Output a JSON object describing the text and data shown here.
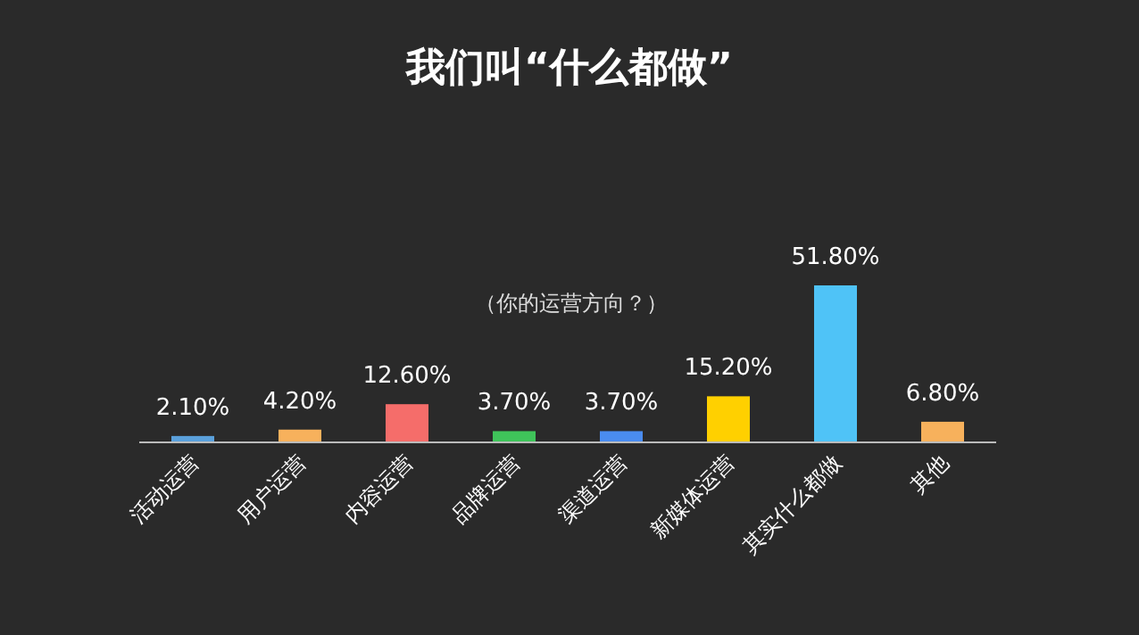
{
  "chart_data": {
    "type": "bar",
    "title": "我们叫“什么都做”",
    "annotations": [
      "（你的运营方向？）"
    ],
    "categories": [
      "活动运营",
      "用户运营",
      "内容运营",
      "品牌运营",
      "渠道运营",
      "新媒体运营",
      "其实什么都做",
      "其他"
    ],
    "values": [
      2.1,
      4.2,
      12.6,
      3.7,
      3.7,
      15.2,
      51.8,
      6.8
    ],
    "colors": [
      "#5aa0db",
      "#f7b15c",
      "#f56d6a",
      "#3fc45a",
      "#4a8cf0",
      "#ffd000",
      "#4fc3f7",
      "#f7b15c"
    ],
    "value_labels": [
      "2.10%",
      "4.20%",
      "12.60%",
      "3.70%",
      "3.70%",
      "15.20%",
      "51.80%",
      "6.80%"
    ]
  }
}
